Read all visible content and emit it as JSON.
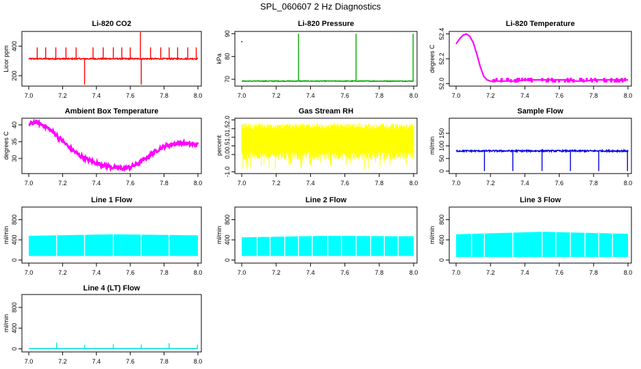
{
  "page_title": "SPL_060607  2 Hz Diagnostics",
  "chart_data": [
    {
      "id": "co2",
      "type": "line",
      "title": "Li-820 CO2",
      "ylabel": "Licor ppm",
      "xlim": [
        7.0,
        8.0
      ],
      "ylim": [
        130,
        500
      ],
      "xticks": [
        "7.0",
        "7.2",
        "7.4",
        "7.6",
        "7.8",
        "8.0"
      ],
      "yticks": [
        {
          "value": 200,
          "label": "200"
        },
        {
          "value": 400,
          "label": "400"
        }
      ],
      "color": "#ff0000",
      "baseline": 315,
      "noise": 8,
      "spikes": [
        {
          "x": 7.05,
          "y": 392
        },
        {
          "x": 7.1,
          "y": 392
        },
        {
          "x": 7.16,
          "y": 392
        },
        {
          "x": 7.22,
          "y": 392
        },
        {
          "x": 7.28,
          "y": 392
        },
        {
          "x": 7.33,
          "y": 140
        },
        {
          "x": 7.38,
          "y": 392
        },
        {
          "x": 7.44,
          "y": 392
        },
        {
          "x": 7.5,
          "y": 392
        },
        {
          "x": 7.55,
          "y": 392
        },
        {
          "x": 7.6,
          "y": 392
        },
        {
          "x": 7.66,
          "y": 495
        },
        {
          "x": 7.665,
          "y": 140
        },
        {
          "x": 7.72,
          "y": 392
        },
        {
          "x": 7.78,
          "y": 392
        },
        {
          "x": 7.83,
          "y": 392
        },
        {
          "x": 7.88,
          "y": 392
        },
        {
          "x": 7.94,
          "y": 392
        },
        {
          "x": 7.99,
          "y": 392
        }
      ]
    },
    {
      "id": "pressure",
      "type": "line",
      "title": "Li-820 Pressure",
      "ylabel": "kPa",
      "xlim": [
        7.0,
        8.0
      ],
      "ylim": [
        67,
        91
      ],
      "xticks": [
        "7.0",
        "7.2",
        "7.4",
        "7.6",
        "7.8",
        "8.0"
      ],
      "yticks": [
        {
          "value": 70,
          "label": "70"
        },
        {
          "value": 80,
          "label": "80"
        },
        {
          "value": 90,
          "label": "90"
        }
      ],
      "color": "#00aa00",
      "baseline": 69.2,
      "noise": 0.3,
      "spikes": [
        {
          "x": 7.33,
          "y": 90
        },
        {
          "x": 7.665,
          "y": 90
        },
        {
          "x": 7.997,
          "y": 90
        }
      ],
      "points": [
        {
          "x": 7.0,
          "y": 86.5
        }
      ]
    },
    {
      "id": "temperature",
      "type": "line",
      "title": "Li-820 Temperature",
      "ylabel": "degrees C",
      "xlim": [
        7.0,
        8.0
      ],
      "ylim": [
        51.98,
        52.42
      ],
      "xticks": [
        "7.0",
        "7.2",
        "7.4",
        "7.6",
        "7.8",
        "8.0"
      ],
      "yticks": [
        {
          "value": 52.0,
          "label": "52.0"
        },
        {
          "value": 52.2,
          "label": "52.2"
        },
        {
          "value": 52.4,
          "label": "52.4"
        }
      ],
      "color": "#ff00ff",
      "x": [
        7.0,
        7.02,
        7.04,
        7.06,
        7.08,
        7.1,
        7.12,
        7.14,
        7.16,
        7.18,
        7.2,
        7.25,
        7.3,
        7.35,
        7.4,
        7.45,
        7.5,
        7.55,
        7.6,
        7.65,
        7.7,
        7.75,
        7.8,
        7.85,
        7.9,
        7.95,
        8.0
      ],
      "y": [
        52.32,
        52.36,
        52.39,
        52.4,
        52.38,
        52.33,
        52.24,
        52.14,
        52.06,
        52.03,
        52.02,
        52.02,
        52.02,
        52.02,
        52.03,
        52.03,
        52.03,
        52.03,
        52.03,
        52.03,
        52.02,
        52.02,
        52.03,
        52.03,
        52.03,
        52.03,
        52.03
      ]
    },
    {
      "id": "ambient",
      "type": "line",
      "title": "Ambient Box Temperature",
      "ylabel": "degrees C",
      "xlim": [
        7.0,
        8.0
      ],
      "ylim": [
        25.5,
        42
      ],
      "xticks": [
        "7.0",
        "7.2",
        "7.4",
        "7.6",
        "7.8",
        "8.0"
      ],
      "yticks": [
        {
          "value": 30,
          "label": "30"
        },
        {
          "value": 35,
          "label": "35"
        },
        {
          "value": 40,
          "label": "40"
        }
      ],
      "color": "#ff00ff",
      "x": [
        7.0,
        7.03,
        7.06,
        7.1,
        7.15,
        7.2,
        7.25,
        7.3,
        7.35,
        7.4,
        7.45,
        7.5,
        7.55,
        7.6,
        7.65,
        7.7,
        7.75,
        7.8,
        7.85,
        7.9,
        7.95,
        8.0
      ],
      "y": [
        40.0,
        40.8,
        40.6,
        39.5,
        37.6,
        35.2,
        32.8,
        30.9,
        29.6,
        28.6,
        27.9,
        27.3,
        27.0,
        27.4,
        28.6,
        30.3,
        32.2,
        33.6,
        34.3,
        34.6,
        34.3,
        34.0
      ],
      "noise": 0.6
    },
    {
      "id": "rh",
      "type": "line",
      "title": "Gas Stream RH",
      "ylabel": "percent",
      "xlim": [
        7.0,
        8.0
      ],
      "ylim": [
        -1.1,
        2.1
      ],
      "xticks": [
        "7.0",
        "7.2",
        "7.4",
        "7.6",
        "7.8",
        "8.0"
      ],
      "yticks": [
        {
          "value": -1.0,
          "label": "-1.0"
        },
        {
          "value": 0.0,
          "label": "0.0"
        },
        {
          "value": 0.5,
          "label": "0.5"
        },
        {
          "value": 1.0,
          "label": "1.0"
        },
        {
          "value": 1.5,
          "label": "1.5"
        },
        {
          "value": 2.0,
          "label": "2.0"
        }
      ],
      "color": "#ffff00",
      "band": [
        -0.3,
        1.8
      ]
    },
    {
      "id": "sample_flow",
      "type": "line",
      "title": "Sample Flow",
      "ylabel": "ml/min",
      "xlim": [
        7.0,
        8.0
      ],
      "ylim": [
        -10,
        210
      ],
      "xticks": [
        "7.0",
        "7.2",
        "7.4",
        "7.6",
        "7.8",
        "8.0"
      ],
      "yticks": [
        {
          "value": 0,
          "label": "0"
        },
        {
          "value": 50,
          "label": "50"
        },
        {
          "value": 100,
          "label": "100"
        },
        {
          "value": 150,
          "label": "150"
        }
      ],
      "color": "#0000dd",
      "baseline": 80,
      "noise": 6,
      "spikes": [
        {
          "x": 7.165,
          "y": 0
        },
        {
          "x": 7.33,
          "y": 0
        },
        {
          "x": 7.5,
          "y": 0
        },
        {
          "x": 7.665,
          "y": 0
        },
        {
          "x": 7.83,
          "y": 0
        },
        {
          "x": 7.997,
          "y": 0
        }
      ]
    },
    {
      "id": "line1",
      "type": "area",
      "title": "Line 1 Flow",
      "ylabel": "ml/min",
      "xlim": [
        7.0,
        8.0
      ],
      "ylim": [
        -60,
        1050
      ],
      "xticks": [
        "7.0",
        "7.2",
        "7.4",
        "7.6",
        "7.8",
        "8.0"
      ],
      "yticks": [
        {
          "value": 0,
          "label": "0"
        },
        {
          "value": 400,
          "label": "400"
        },
        {
          "value": 800,
          "label": "800"
        }
      ],
      "color": "#00ffff",
      "band_low": 80,
      "band_high": [
        {
          "x": 7.0,
          "y": 480
        },
        {
          "x": 7.5,
          "y": 510
        },
        {
          "x": 8.0,
          "y": 490
        }
      ],
      "gaps": [
        7.165,
        7.33,
        7.5,
        7.665,
        7.83
      ]
    },
    {
      "id": "line2",
      "type": "area",
      "title": "Line 2 Flow",
      "ylabel": "ml/min",
      "xlim": [
        7.0,
        8.0
      ],
      "ylim": [
        -60,
        1050
      ],
      "xticks": [
        "7.0",
        "7.2",
        "7.4",
        "7.6",
        "7.8",
        "8.0"
      ],
      "yticks": [
        {
          "value": 0,
          "label": "0"
        },
        {
          "value": 400,
          "label": "400"
        },
        {
          "value": 800,
          "label": "800"
        }
      ],
      "color": "#00ffff",
      "band_low": 80,
      "band_high": [
        {
          "x": 7.0,
          "y": 450
        },
        {
          "x": 7.5,
          "y": 480
        },
        {
          "x": 8.0,
          "y": 470
        }
      ],
      "gaps": [
        7.09,
        7.165,
        7.25,
        7.33,
        7.41,
        7.5,
        7.58,
        7.665,
        7.75,
        7.83,
        7.91
      ]
    },
    {
      "id": "line3",
      "type": "area",
      "title": "Line 3 Flow",
      "ylabel": "ml/min",
      "xlim": [
        7.0,
        8.0
      ],
      "ylim": [
        -60,
        1050
      ],
      "xticks": [
        "7.0",
        "7.2",
        "7.4",
        "7.6",
        "7.8",
        "8.0"
      ],
      "yticks": [
        {
          "value": 0,
          "label": "0"
        },
        {
          "value": 400,
          "label": "400"
        },
        {
          "value": 800,
          "label": "800"
        }
      ],
      "color": "#00ffff",
      "band_low": 60,
      "band_high": [
        {
          "x": 7.0,
          "y": 510
        },
        {
          "x": 7.5,
          "y": 560
        },
        {
          "x": 8.0,
          "y": 520
        }
      ],
      "gaps": [
        7.09,
        7.165,
        7.33,
        7.5,
        7.58,
        7.665,
        7.75,
        7.83,
        7.91
      ]
    },
    {
      "id": "line4",
      "type": "line",
      "title": "Line 4 (LT) Flow",
      "ylabel": "ml/min",
      "xlim": [
        7.0,
        8.0
      ],
      "ylim": [
        -60,
        1050
      ],
      "xticks": [
        "7.0",
        "7.2",
        "7.4",
        "7.6",
        "7.8",
        "8.0"
      ],
      "yticks": [
        {
          "value": 0,
          "label": "0"
        },
        {
          "value": 400,
          "label": "400"
        },
        {
          "value": 800,
          "label": "800"
        }
      ],
      "color": "#00e5e5",
      "baseline": 5,
      "spikes": [
        {
          "x": 7.165,
          "y": 120
        },
        {
          "x": 7.33,
          "y": 80
        },
        {
          "x": 7.5,
          "y": 90
        },
        {
          "x": 7.665,
          "y": 80
        },
        {
          "x": 7.83,
          "y": 110
        },
        {
          "x": 7.997,
          "y": 80
        }
      ]
    }
  ]
}
